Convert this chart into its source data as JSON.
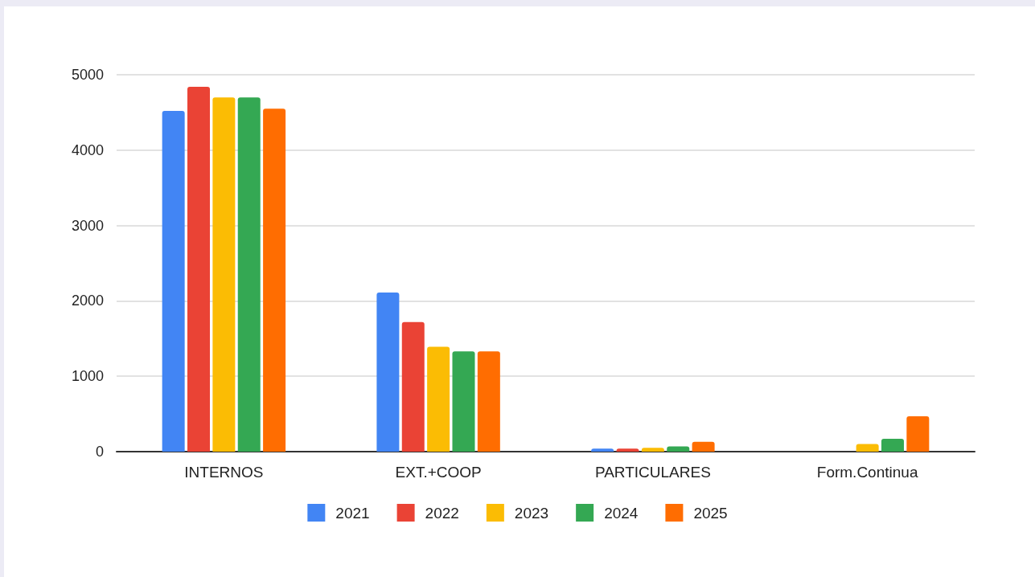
{
  "chart_data": {
    "type": "bar",
    "categories": [
      "INTERNOS",
      "EXT.+COOP",
      "PARTICULARES",
      "Form.Continua"
    ],
    "series": [
      {
        "name": "2021",
        "color": "#4285f4",
        "values": [
          4520,
          2110,
          40,
          null
        ]
      },
      {
        "name": "2022",
        "color": "#ea4335",
        "values": [
          4840,
          1720,
          40,
          null
        ]
      },
      {
        "name": "2023",
        "color": "#fbbc04",
        "values": [
          4700,
          1390,
          50,
          100
        ]
      },
      {
        "name": "2024",
        "color": "#34a853",
        "values": [
          4700,
          1330,
          70,
          170
        ]
      },
      {
        "name": "2025",
        "color": "#ff6d01",
        "values": [
          4550,
          1330,
          130,
          470
        ]
      }
    ],
    "ylim": [
      0,
      5000
    ],
    "yticks": [
      0,
      1000,
      2000,
      3000,
      4000,
      5000
    ],
    "grid": "y",
    "legend": "bottom"
  }
}
